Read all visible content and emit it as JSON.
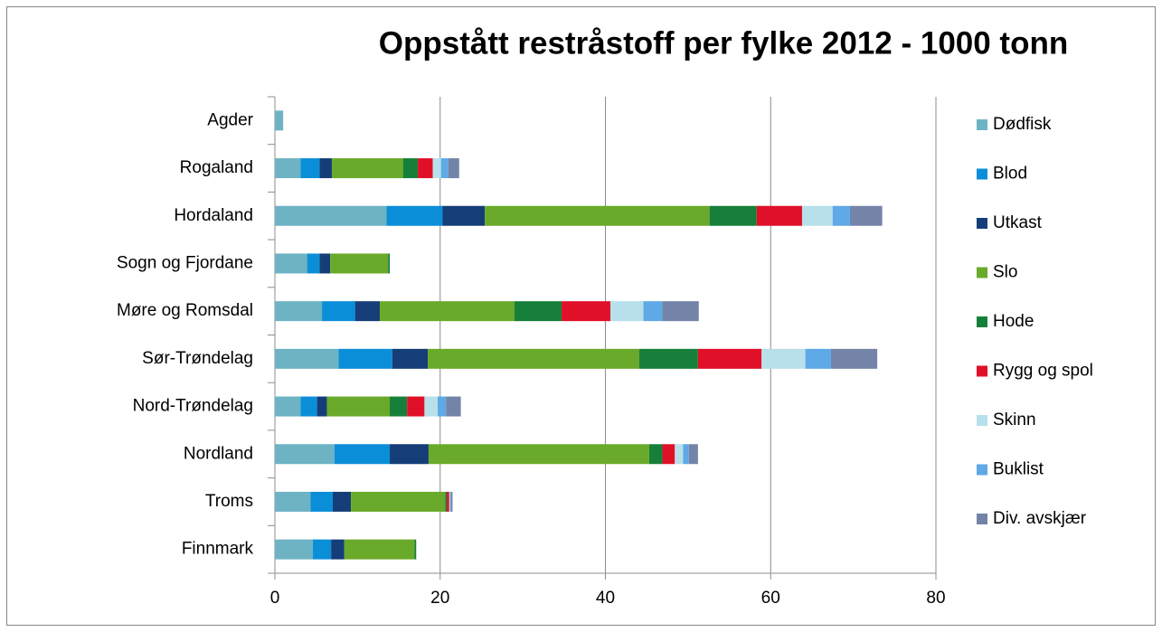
{
  "chart_data": {
    "type": "bar",
    "orientation": "horizontal",
    "stacked": true,
    "title": "Oppstått restråstoff per fylke 2012 - 1000 tonn",
    "categories": [
      "Agder",
      "Rogaland",
      "Hordaland",
      "Sogn og Fjordane",
      "Møre og Romsdal",
      "Sør-Trøndelag",
      "Nord-Trøndelag",
      "Nordland",
      "Troms",
      "Finnmark"
    ],
    "series": [
      {
        "name": "Dødfisk",
        "color": "#6db3c4",
        "values": [
          1.0,
          3.1,
          13.5,
          3.9,
          5.7,
          7.7,
          3.1,
          7.2,
          4.3,
          4.6
        ]
      },
      {
        "name": "Blod",
        "color": "#0b8ed8",
        "values": [
          0,
          2.3,
          6.8,
          1.5,
          4.0,
          6.5,
          2.0,
          6.7,
          2.7,
          2.2
        ]
      },
      {
        "name": "Utkast",
        "color": "#153e78",
        "values": [
          0,
          1.5,
          5.1,
          1.3,
          3.0,
          4.3,
          1.2,
          4.7,
          2.2,
          1.6
        ]
      },
      {
        "name": "Slo",
        "color": "#6aaa2a",
        "values": [
          0,
          8.6,
          27.2,
          7.0,
          16.3,
          25.6,
          7.6,
          26.7,
          11.4,
          8.5
        ]
      },
      {
        "name": "Hode",
        "color": "#16803a",
        "values": [
          0,
          1.8,
          5.7,
          0.2,
          5.7,
          7.1,
          2.1,
          1.6,
          0.2,
          0.2
        ]
      },
      {
        "name": "Rygg og spol",
        "color": "#e01028",
        "values": [
          0,
          1.8,
          5.5,
          0,
          5.9,
          7.7,
          2.1,
          1.5,
          0.3,
          0
        ]
      },
      {
        "name": "Skinn",
        "color": "#b8e0ea",
        "values": [
          0,
          1.0,
          3.7,
          0,
          4.0,
          5.3,
          1.6,
          1.0,
          0.1,
          0
        ]
      },
      {
        "name": "Buklist",
        "color": "#5ea9e6",
        "values": [
          0,
          0.9,
          2.1,
          0,
          2.3,
          3.1,
          1.0,
          0.7,
          0.1,
          0
        ]
      },
      {
        "name": "Div. avskjær",
        "color": "#7484a8",
        "values": [
          0,
          1.3,
          3.9,
          0,
          4.4,
          5.6,
          1.8,
          1.1,
          0.2,
          0
        ]
      }
    ],
    "xlim": [
      0,
      80
    ],
    "xticks": [
      0,
      20,
      40,
      60,
      80
    ],
    "grid": true,
    "legend": "right"
  }
}
